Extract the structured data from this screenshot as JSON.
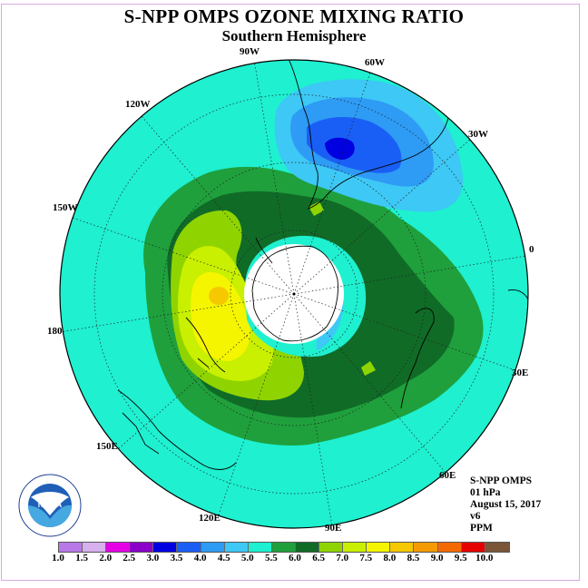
{
  "title": "S-NPP OMPS OZONE MIXING RATIO",
  "subtitle": "Southern Hemisphere",
  "longitude_labels": {
    "lon_90w": "90W",
    "lon_60w": "60W",
    "lon_30w": "30W",
    "lon_0": "0",
    "lon_30e": "30E",
    "lon_60e": "60E",
    "lon_90e": "90E",
    "lon_120e": "120E",
    "lon_150e": "150E",
    "lon_180": "180",
    "lon_150w": "150W",
    "lon_120w": "120W"
  },
  "info": {
    "instrument": "S-NPP OMPS",
    "level": "01 hPa",
    "date": "August 15, 2017",
    "version": "v6",
    "units": "PPM"
  },
  "logo": {
    "text": "NOAA",
    "ring_text": "NATIONAL OCEANIC AND ATMOSPHERIC ADMINISTRATION · U.S. DEPARTMENT OF COMMERCE"
  },
  "colorbar": {
    "labels": [
      "1.0",
      "1.5",
      "2.0",
      "2.5",
      "3.0",
      "3.5",
      "4.0",
      "4.5",
      "5.0",
      "5.5",
      "6.0",
      "6.5",
      "7.0",
      "7.5",
      "8.0",
      "8.5",
      "9.0",
      "9.5",
      "10.0"
    ],
    "colors": [
      "#b879e8",
      "#d7b0ee",
      "#e600e6",
      "#8a00c9",
      "#0000e0",
      "#1a5ff5",
      "#2e9bf5",
      "#3dc8f5",
      "#1ef0d0",
      "#1fa03c",
      "#106b27",
      "#8fd400",
      "#c8f000",
      "#f5f500",
      "#f5c800",
      "#f59a00",
      "#f56a00",
      "#e60000",
      "#7a5538"
    ]
  },
  "chart_data": {
    "type": "map",
    "projection": "south polar stereographic",
    "field": "ozone mixing ratio",
    "units": "PPM",
    "level": "01 hPa",
    "date": "August 15, 2017",
    "value_range": [
      1.0,
      10.0
    ],
    "contour_interval": 0.5,
    "features": [
      {
        "name": "background",
        "range": [
          5.0,
          5.5
        ]
      },
      {
        "name": "ring-belt",
        "range": [
          5.5,
          6.0
        ]
      },
      {
        "name": "low-south-america",
        "min_range": [
          2.5,
          3.0
        ]
      },
      {
        "name": "high-pacific",
        "max_range": [
          7.5,
          8.0
        ]
      },
      {
        "name": "polar-night",
        "value": "no data"
      }
    ]
  }
}
